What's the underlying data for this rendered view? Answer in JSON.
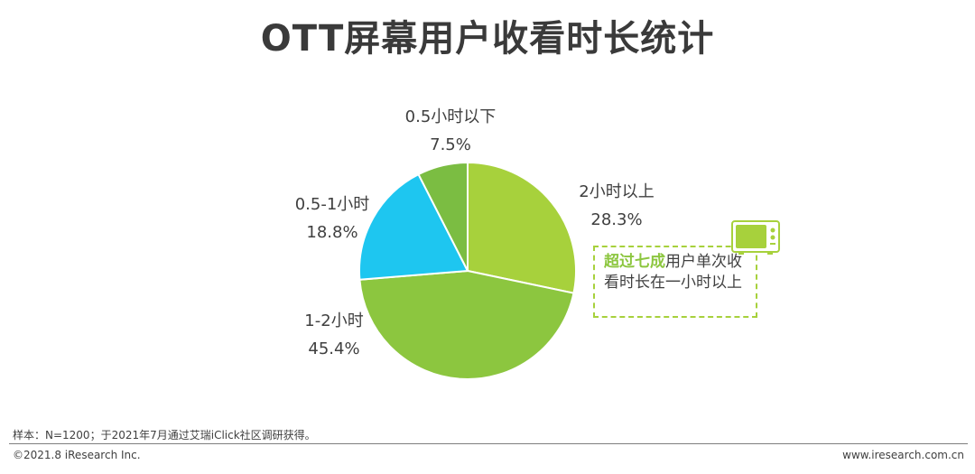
{
  "title": "OTT屏幕用户收看时长统计",
  "chart_data": {
    "type": "pie",
    "categories": [
      "2小时以上",
      "1-2小时",
      "0.5-1小时",
      "0.5小时以下"
    ],
    "values": [
      28.3,
      45.4,
      18.8,
      7.5
    ],
    "value_labels": [
      "28.3%",
      "45.4%",
      "18.8%",
      "7.5%"
    ],
    "colors": [
      "#a7d13c",
      "#8cc63f",
      "#1ec6f0",
      "#7bbd42"
    ],
    "legend": "none (labels beside slices)"
  },
  "callout": {
    "highlight": "超过七成",
    "rest": "用户单次收看时长在一小时以上"
  },
  "footer": {
    "note": "样本：N=1200；于2021年7月通过艾瑞iClick社区调研获得。",
    "copyright": "©2021.8 iResearch Inc.",
    "website": "www.iresearch.com.cn"
  }
}
